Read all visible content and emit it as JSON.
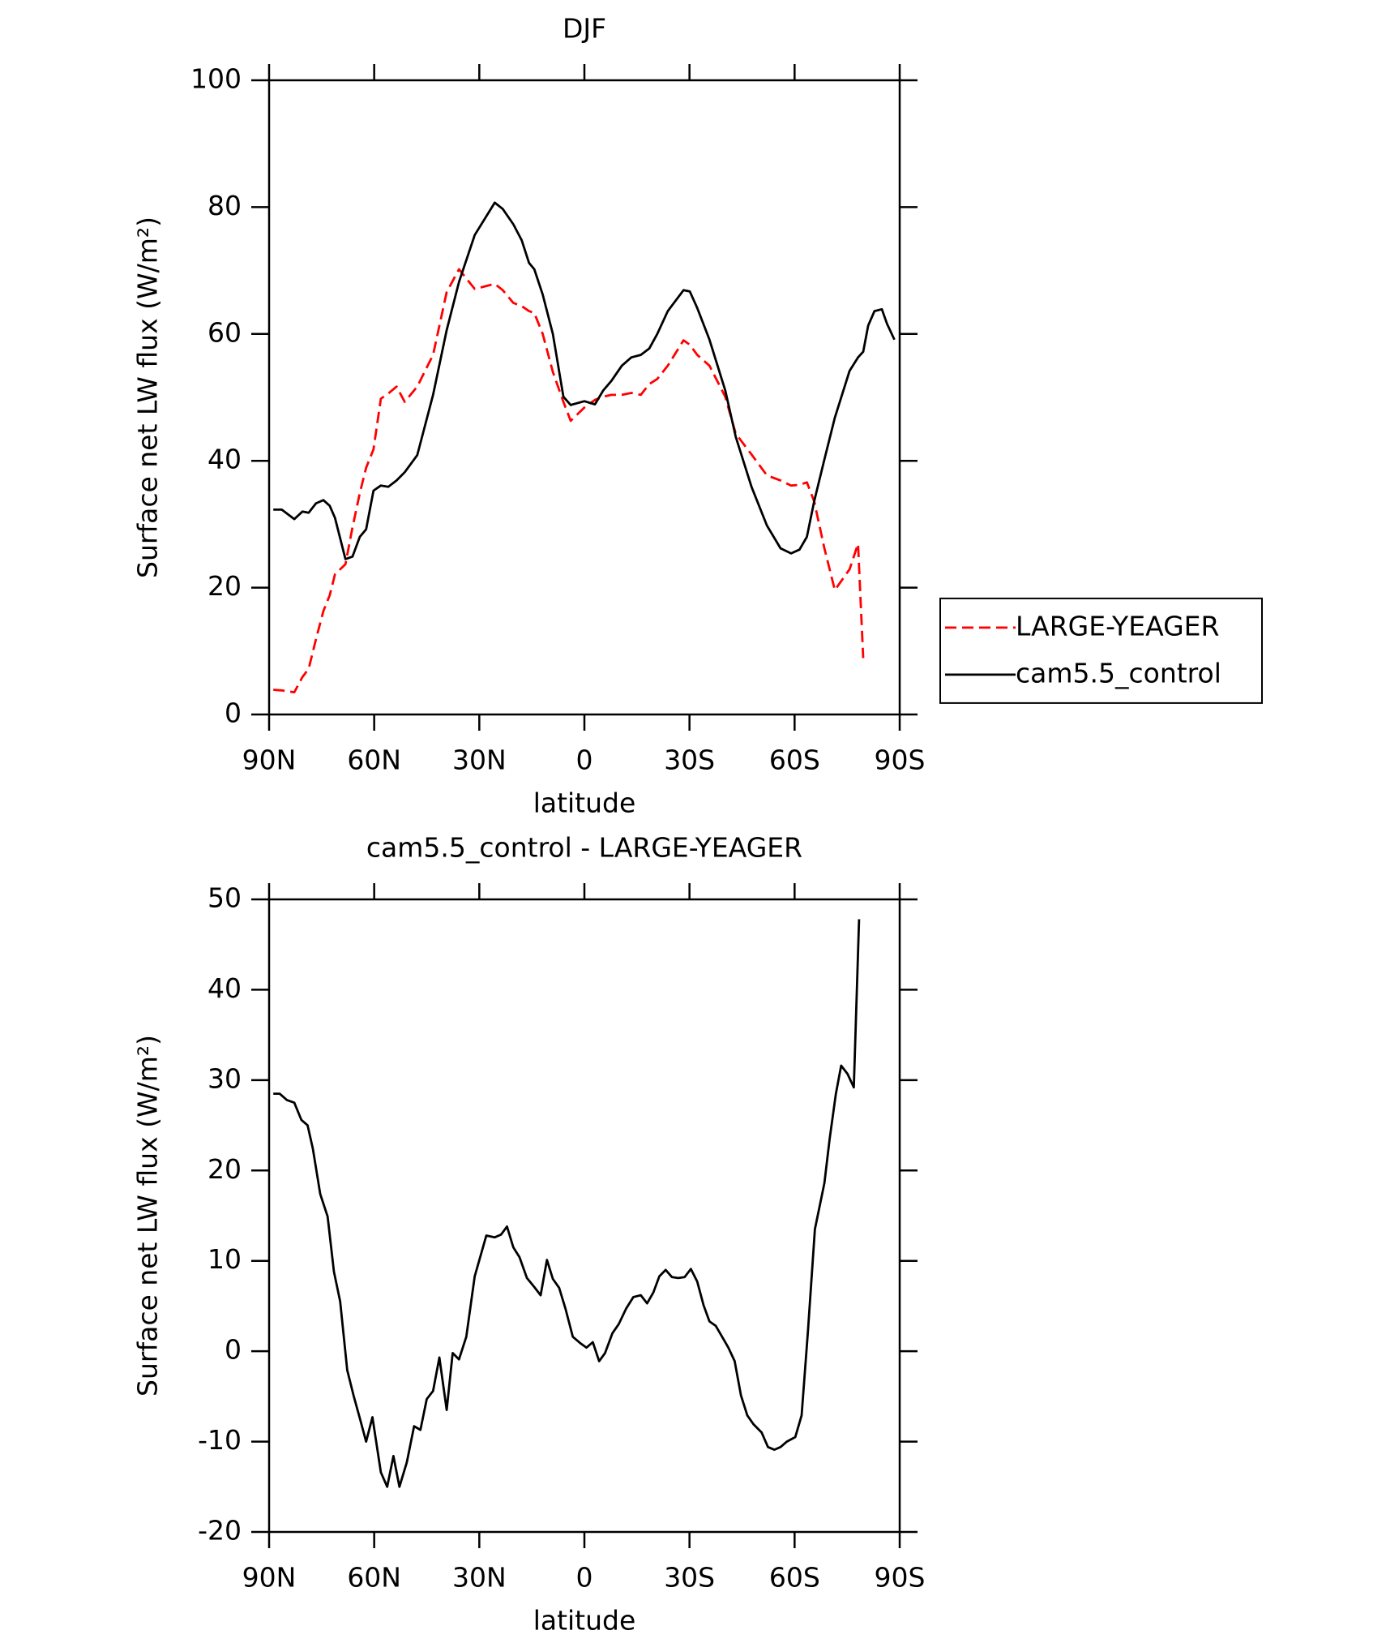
{
  "chart_data": [
    {
      "type": "line",
      "title": "DJF",
      "xlabel": "latitude",
      "ylabel": "Surface net LW flux (W/m²)",
      "x": [
        88.8,
        86.4,
        82.8,
        80.5,
        78.7,
        76.6,
        74.5,
        72.7,
        71.2,
        68.2,
        66.2,
        64.1,
        62.3,
        60.2,
        58.1,
        56.0,
        53.6,
        51.3,
        47.7,
        43.2,
        39.3,
        35.8,
        31.3,
        25.6,
        23.3,
        20.3,
        17.9,
        15.8,
        14.3,
        11.9,
        9.0,
        6.0,
        3.9,
        0.0,
        -3.0,
        -5.4,
        -7.7,
        -10.7,
        -13.4,
        -16.1,
        -18.5,
        -20.8,
        -23.8,
        -28.3,
        -30.1,
        -32.2,
        -35.7,
        -40.2,
        -43.2,
        -47.7,
        -52.1,
        -56.0,
        -59.0,
        -61.4,
        -63.5,
        -65.6,
        -68.5,
        -71.5,
        -75.7,
        -78.1,
        -79.6,
        -81.0,
        -82.8,
        -84.9,
        -86.4,
        -88.5
      ],
      "series": [
        {
          "name": "LARGE-YEAGER",
          "color": "#ff0000",
          "dash": true,
          "values": [
            3.9,
            3.8,
            3.5,
            5.9,
            7.2,
            11.9,
            16.3,
            18.8,
            22.1,
            23.7,
            29.5,
            34.9,
            38.9,
            41.8,
            49.8,
            50.6,
            51.7,
            49.3,
            51.7,
            56.7,
            66.6,
            70.2,
            67.1,
            67.9,
            66.9,
            64.9,
            64.4,
            63.6,
            63.3,
            60.0,
            54.0,
            49.3,
            46.3,
            48.4,
            49.6,
            50.1,
            50.4,
            50.4,
            50.7,
            50.4,
            52.1,
            52.9,
            55.0,
            59.0,
            58.3,
            56.7,
            55.0,
            50.1,
            44.3,
            41.0,
            37.7,
            36.9,
            36.1,
            36.2,
            36.6,
            33.6,
            26.2,
            19.6,
            22.9,
            26.9,
            8.9,
            null,
            null,
            null,
            null,
            null
          ]
        },
        {
          "name": "cam5.5_control",
          "color": "#000000",
          "dash": false,
          "values": [
            32.3,
            32.3,
            30.8,
            32.0,
            31.8,
            33.3,
            33.8,
            32.9,
            31.0,
            24.5,
            24.9,
            28.0,
            29.2,
            35.3,
            36.1,
            35.9,
            36.9,
            38.2,
            40.9,
            50.4,
            60.6,
            68.2,
            75.6,
            80.7,
            79.7,
            77.3,
            74.8,
            71.2,
            70.2,
            66.2,
            60.0,
            50.1,
            48.8,
            49.4,
            48.9,
            51.1,
            52.6,
            55.0,
            56.3,
            56.7,
            57.7,
            60.0,
            63.6,
            66.9,
            66.7,
            64.1,
            59.1,
            51.1,
            43.8,
            35.9,
            29.8,
            26.2,
            25.4,
            26.0,
            28.0,
            33.6,
            40.2,
            46.8,
            54.2,
            56.3,
            57.2,
            61.3,
            63.6,
            63.9,
            61.6,
            59.1
          ]
        }
      ],
      "xlim": [
        90,
        -90
      ],
      "xticks": [
        {
          "value": 90,
          "label": "90N"
        },
        {
          "value": 60,
          "label": "60N"
        },
        {
          "value": 30,
          "label": "30N"
        },
        0,
        {
          "value": -30,
          "label": "30S"
        },
        {
          "value": -60,
          "label": "60S"
        },
        {
          "value": -90,
          "label": "90S"
        }
      ],
      "ylim": [
        0,
        100
      ],
      "yticks": [
        0,
        20,
        40,
        60,
        80,
        100
      ],
      "legend": "right"
    },
    {
      "type": "line",
      "title": "cam5.5_control - LARGE-YEAGER",
      "xlabel": "latitude",
      "ylabel": "Surface net LW flux (W/m²)",
      "x": [
        88.8,
        87.0,
        84.9,
        82.8,
        80.8,
        79.0,
        77.5,
        75.4,
        73.3,
        71.5,
        69.7,
        67.7,
        65.9,
        64.1,
        62.3,
        60.5,
        58.1,
        56.3,
        54.5,
        52.8,
        50.7,
        48.6,
        46.8,
        45.0,
        43.2,
        41.4,
        39.3,
        37.6,
        35.8,
        33.7,
        31.3,
        28.0,
        25.6,
        23.8,
        22.1,
        20.3,
        18.5,
        16.4,
        14.3,
        12.5,
        10.7,
        9.0,
        7.2,
        5.4,
        3.3,
        1.2,
        -0.6,
        -2.4,
        -4.2,
        -5.9,
        -8.0,
        -9.8,
        -11.9,
        -14.0,
        -16.1,
        -17.9,
        -19.7,
        -21.4,
        -23.2,
        -25.0,
        -26.8,
        -28.6,
        -30.4,
        -32.2,
        -34.0,
        -35.7,
        -37.5,
        -39.3,
        -41.1,
        -42.9,
        -44.7,
        -46.5,
        -48.3,
        -50.6,
        -52.4,
        -54.2,
        -56.0,
        -57.8,
        -60.2,
        -62.0,
        -63.8,
        -65.8,
        -68.5,
        -70.0,
        -71.8,
        -73.3,
        -75.1,
        -76.9,
        -78.4
      ],
      "series": [
        {
          "name": "cam5.5_control - LARGE-YEAGER",
          "color": "#000000",
          "dash": false,
          "values": [
            28.5,
            28.5,
            27.8,
            27.5,
            25.6,
            25.0,
            22.4,
            17.4,
            14.9,
            8.8,
            5.5,
            -2.1,
            -4.9,
            -7.4,
            -10.0,
            -7.3,
            -13.4,
            -15.0,
            -11.6,
            -15.0,
            -12.3,
            -8.3,
            -8.7,
            -5.3,
            -4.4,
            -0.7,
            -6.5,
            -0.2,
            -0.9,
            1.6,
            8.3,
            12.8,
            12.6,
            12.9,
            13.8,
            11.5,
            10.4,
            8.1,
            7.1,
            6.2,
            10.1,
            8.0,
            7.0,
            4.7,
            1.6,
            0.9,
            0.4,
            1.0,
            -1.1,
            -0.2,
            2.0,
            3.0,
            4.7,
            6.0,
            6.2,
            5.3,
            6.5,
            8.3,
            9.0,
            8.2,
            8.1,
            8.2,
            9.1,
            7.7,
            5.1,
            3.3,
            2.8,
            1.6,
            0.4,
            -1.1,
            -4.9,
            -7.1,
            -8.1,
            -9.0,
            -10.6,
            -10.9,
            -10.6,
            -10.0,
            -9.5,
            -7.1,
            2.2,
            13.5,
            18.6,
            23.5,
            28.5,
            31.6,
            30.7,
            29.2,
            47.8
          ]
        }
      ],
      "xlim": [
        90,
        -90
      ],
      "xticks": [
        {
          "value": 90,
          "label": "90N"
        },
        {
          "value": 60,
          "label": "60N"
        },
        {
          "value": 30,
          "label": "30N"
        },
        0,
        {
          "value": -30,
          "label": "30S"
        },
        {
          "value": -60,
          "label": "60S"
        },
        {
          "value": -90,
          "label": "90S"
        }
      ],
      "ylim": [
        -20,
        50
      ],
      "yticks": [
        -20,
        -10,
        0,
        10,
        20,
        30,
        40,
        50
      ]
    }
  ]
}
